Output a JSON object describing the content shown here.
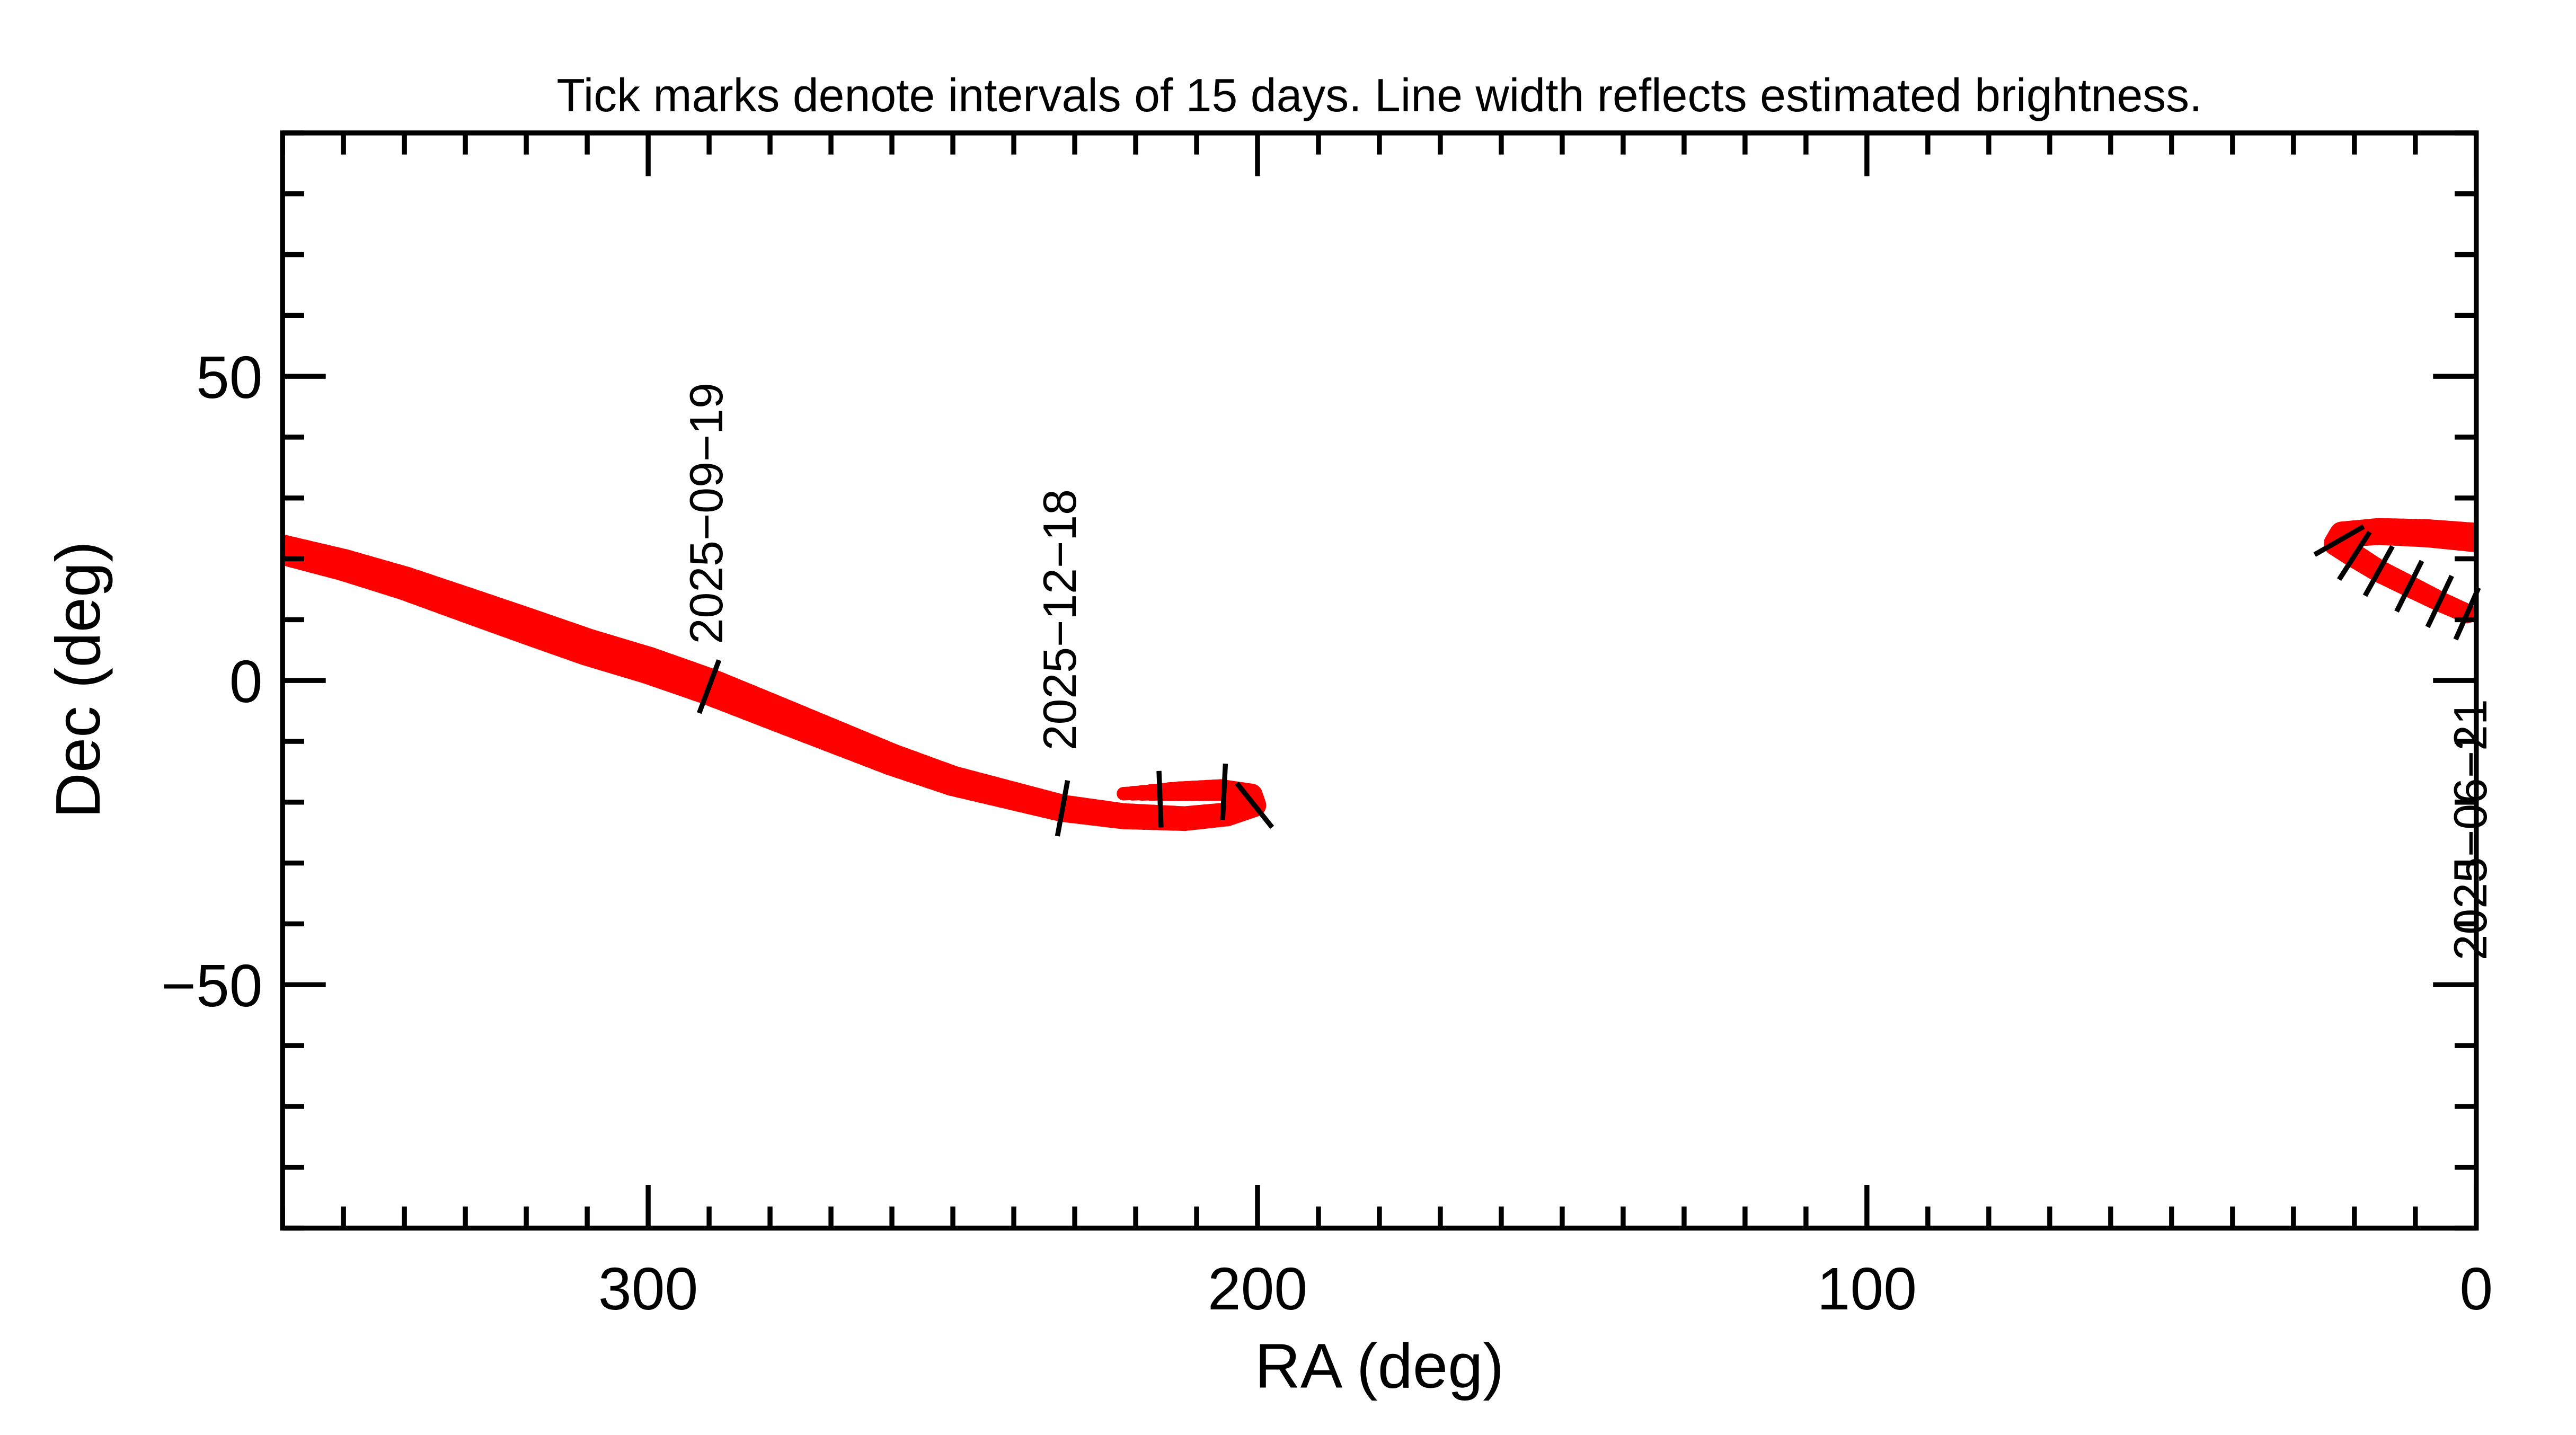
{
  "chart_data": {
    "type": "line",
    "title": "Tick marks denote intervals of 15 days.  Line width reflects estimated brightness.",
    "xlabel": "RA (deg)",
    "ylabel": "Dec (deg)",
    "xlim": [
      360,
      0
    ],
    "ylim": [
      -90,
      90
    ],
    "x_ticks": [
      300,
      200,
      100,
      0
    ],
    "x_tick_labels": [
      "300",
      "200",
      "100",
      "0"
    ],
    "y_ticks": [
      50,
      0,
      -50
    ],
    "y_tick_labels": [
      "50",
      "0",
      "−50"
    ],
    "x_minor_step": 10,
    "y_minor_step": 10,
    "grid": false,
    "line_color": "#ff0000",
    "tick_color": "#000000",
    "track": [
      [
        1.5,
        11,
        0.45
      ],
      [
        6,
        13,
        0.47
      ],
      [
        11,
        15.5,
        0.5
      ],
      [
        16,
        18,
        0.52
      ],
      [
        20,
        20.5,
        0.55
      ],
      [
        23,
        22.5,
        0.57
      ],
      [
        22,
        24,
        0.6
      ],
      [
        16,
        24.5,
        0.62
      ],
      [
        8,
        24.2,
        0.65
      ],
      [
        0,
        23.5,
        0.68
      ],
      [
        360,
        21.5,
        0.7
      ],
      [
        350,
        19,
        0.74
      ],
      [
        340,
        16,
        0.78
      ],
      [
        330,
        12.5,
        0.82
      ],
      [
        320,
        9,
        0.85
      ],
      [
        310,
        5.5,
        0.86
      ],
      [
        300,
        2.5,
        0.86
      ],
      [
        290,
        -1,
        0.85
      ],
      [
        280,
        -5,
        0.82
      ],
      [
        270,
        -9,
        0.78
      ],
      [
        260,
        -13,
        0.74
      ],
      [
        250,
        -16.5,
        0.7
      ],
      [
        240,
        -19,
        0.66
      ],
      [
        232,
        -21,
        0.63
      ],
      [
        222,
        -22.3,
        0.6
      ],
      [
        212,
        -22.7,
        0.57
      ],
      [
        205,
        -22,
        0.55
      ],
      [
        200.5,
        -20.5,
        0.54
      ],
      [
        201,
        -18.8,
        0.52
      ],
      [
        206,
        -18,
        0.5
      ],
      [
        213,
        -18.2,
        0.45
      ],
      [
        222,
        -18.6,
        0.3
      ]
    ],
    "interval_ticks": [
      [
        1.5,
        11
      ],
      [
        6,
        13
      ],
      [
        11,
        15.5
      ],
      [
        16,
        18
      ],
      [
        20,
        20.5
      ],
      [
        22.5,
        23
      ],
      [
        290,
        -1
      ],
      [
        232,
        -21
      ],
      [
        216,
        -19.5
      ],
      [
        205.5,
        -18.3
      ],
      [
        200.5,
        -20.5
      ]
    ],
    "date_labels": [
      {
        "text": "2025−09−19",
        "ra": 290,
        "dec": 6
      },
      {
        "text": "2025−12−18",
        "ra": 232,
        "dec": -11.5
      },
      {
        "text": "2025−06−21",
        "ra": 0.5,
        "dec": -46
      }
    ]
  }
}
